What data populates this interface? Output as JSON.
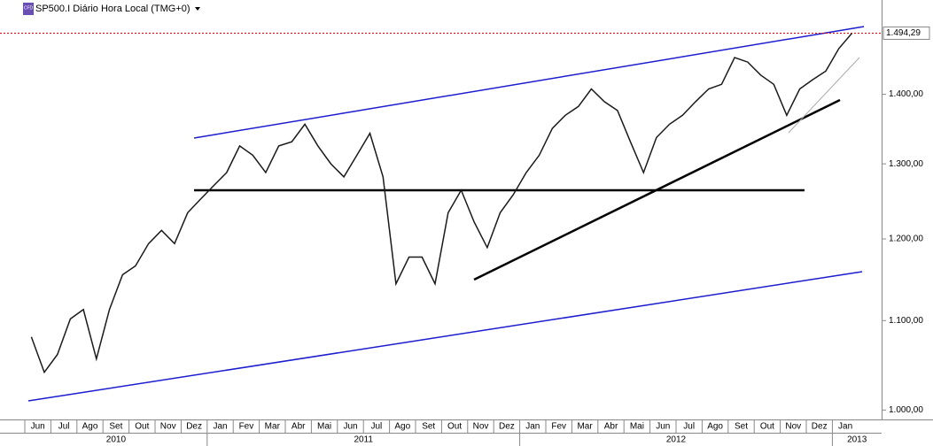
{
  "header": {
    "icon": "CFD",
    "symbol": "SP500.I Diário Hora Local (TMG+0)"
  },
  "chart_data": {
    "type": "line",
    "categories": [
      "Jun",
      null,
      "Jul",
      null,
      "Ago",
      null,
      "Set",
      null,
      "Out",
      null,
      "Nov",
      null,
      "Dez",
      null,
      "Jan",
      null,
      "Fev",
      null,
      "Mar",
      null,
      "Abr",
      null,
      "Mai",
      null,
      "Jun",
      null,
      "Jul",
      null,
      "Ago",
      null,
      "Set",
      null,
      "Out",
      null,
      "Nov",
      null,
      "Dez",
      null,
      "Jan",
      null,
      "Fev",
      null,
      "Mar",
      null,
      "Abr",
      null,
      "Mai",
      null,
      "Jun",
      null,
      "Jul",
      null,
      "Ago",
      null,
      "Set",
      null,
      "Out",
      null,
      "Nov",
      null,
      "Dez",
      null,
      "Jan",
      null
    ],
    "values": [
      1081,
      1041,
      1061,
      1102,
      1113,
      1056,
      1113,
      1155,
      1166,
      1194,
      1211,
      1194,
      1234,
      1252,
      1270,
      1288,
      1325,
      1312,
      1288,
      1325,
      1331,
      1356,
      1325,
      1300,
      1282,
      1312,
      1343,
      1282,
      1144,
      1177,
      1177,
      1144,
      1234,
      1264,
      1222,
      1189,
      1234,
      1258,
      1288,
      1312,
      1350,
      1369,
      1382,
      1408,
      1389,
      1376,
      1331,
      1288,
      1337,
      1356,
      1369,
      1389,
      1408,
      1415,
      1456,
      1449,
      1429,
      1415,
      1369,
      1408,
      1422,
      1435,
      1470,
      1494
    ],
    "color": "#1a1a1a",
    "years": [
      "2010",
      "2011",
      "2012",
      "2013"
    ],
    "log_scale": true,
    "ylim": [
      990,
      1548
    ],
    "yticks": [
      {
        "value": 1000,
        "label": "1.000,00"
      },
      {
        "value": 1100,
        "label": "1.100,00"
      },
      {
        "value": 1200,
        "label": "1.200,00"
      },
      {
        "value": 1300,
        "label": "1.300,00"
      },
      {
        "value": 1400,
        "label": "1.400,00"
      }
    ],
    "last_price": {
      "value": 1494.29,
      "label": "1.494,29"
    }
  }
}
